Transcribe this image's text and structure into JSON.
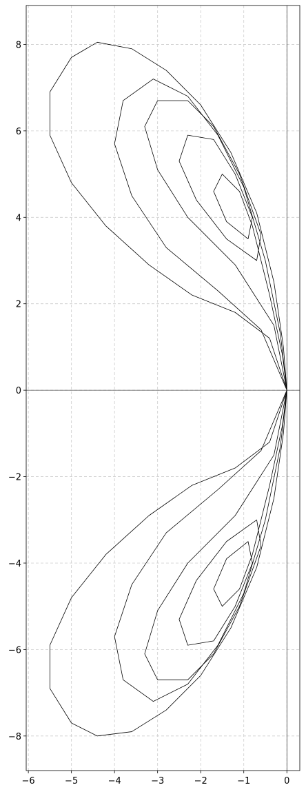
{
  "chart_data": {
    "type": "line",
    "xlim": [
      -6.05,
      0.3
    ],
    "ylim": [
      -8.8,
      8.9
    ],
    "xticks": [
      {
        "value": -6,
        "label": "−6"
      },
      {
        "value": -5,
        "label": "−5"
      },
      {
        "value": -4,
        "label": "−4"
      },
      {
        "value": -3,
        "label": "−3"
      },
      {
        "value": -2,
        "label": "−2"
      },
      {
        "value": -1,
        "label": "−1"
      },
      0
    ],
    "yticks": [
      {
        "value": -8,
        "label": "−8"
      },
      {
        "value": -6,
        "label": "−6"
      },
      {
        "value": -4,
        "label": "−4"
      },
      {
        "value": -2,
        "label": "−2"
      },
      0,
      2,
      4,
      6,
      8
    ],
    "grid": true,
    "hlines": [
      0
    ],
    "vlines": [
      0
    ],
    "series": [
      {
        "color": "#000000",
        "x": [
          0,
          -0.4,
          -1.2,
          -2.2,
          -3.2,
          -4.2,
          -5,
          -5.5,
          -5.5,
          -5,
          -4.4,
          -3.6,
          -2.8,
          -2,
          -1.3,
          -0.7,
          -0.3,
          -0.08,
          0,
          -0.6,
          -1.6,
          -2.8,
          -3.6,
          -4,
          -3.8,
          -3.1,
          -2.3,
          -1.6,
          -1,
          -0.5,
          -0.15,
          0
        ],
        "y": [
          0,
          1.2,
          1.8,
          2.2,
          2.9,
          3.8,
          4.8,
          5.9,
          6.9,
          7.7,
          8.05,
          7.9,
          7.4,
          6.6,
          5.5,
          4.1,
          2.5,
          1,
          0,
          1.4,
          2.3,
          3.3,
          4.5,
          5.7,
          6.7,
          7.2,
          6.8,
          5.9,
          4.7,
          3,
          1.3,
          0
        ]
      },
      {
        "color": "#000000",
        "x": [
          0,
          -0.3,
          -1.2,
          -2.3,
          -3,
          -3.3,
          -3,
          -2.3,
          -1.7,
          -1.1,
          -0.6,
          -0.7,
          -1.4,
          -2.1,
          -2.5,
          -2.3,
          -1.7,
          -1.2,
          -0.8,
          -0.9,
          -1.4,
          -1.7,
          -1.5,
          -1.1,
          -0.8,
          -0.4,
          -0.1,
          0
        ],
        "y": [
          0,
          1.5,
          2.9,
          4,
          5.1,
          6.1,
          6.7,
          6.7,
          6.1,
          5,
          3.6,
          3,
          3.5,
          4.4,
          5.3,
          5.9,
          5.8,
          5,
          4,
          3.5,
          3.9,
          4.6,
          5,
          4.6,
          3.8,
          2.2,
          0.8,
          0
        ]
      },
      {
        "color": "#000000",
        "x": [
          0,
          -0.4,
          -1.2,
          -2.2,
          -3.2,
          -4.2,
          -5,
          -5.5,
          -5.5,
          -5,
          -4.4,
          -3.6,
          -2.8,
          -2,
          -1.3,
          -0.7,
          -0.3,
          -0.08,
          0,
          -0.6,
          -1.6,
          -2.8,
          -3.6,
          -4,
          -3.8,
          -3.1,
          -2.3,
          -1.6,
          -1,
          -0.5,
          -0.15,
          0
        ],
        "y": [
          0,
          -1.2,
          -1.8,
          -2.2,
          -2.9,
          -3.8,
          -4.8,
          -5.9,
          -6.9,
          -7.7,
          -8,
          -7.9,
          -7.4,
          -6.6,
          -5.5,
          -4.1,
          -2.5,
          -1,
          0,
          -1.4,
          -2.3,
          -3.3,
          -4.5,
          -5.7,
          -6.7,
          -7.2,
          -6.8,
          -5.9,
          -4.7,
          -3,
          -1.3,
          0
        ]
      },
      {
        "color": "#000000",
        "x": [
          0,
          -0.3,
          -1.2,
          -2.3,
          -3,
          -3.3,
          -3,
          -2.3,
          -1.7,
          -1.1,
          -0.6,
          -0.7,
          -1.4,
          -2.1,
          -2.5,
          -2.3,
          -1.7,
          -1.2,
          -0.8,
          -0.9,
          -1.4,
          -1.7,
          -1.5,
          -1.1,
          -0.8,
          -0.4,
          -0.1,
          0
        ],
        "y": [
          0,
          -1.5,
          -2.9,
          -4,
          -5.1,
          -6.1,
          -6.7,
          -6.7,
          -6.1,
          -5,
          -3.6,
          -3,
          -3.5,
          -4.4,
          -5.3,
          -5.9,
          -5.8,
          -5,
          -4,
          -3.5,
          -3.9,
          -4.6,
          -5,
          -4.6,
          -3.8,
          -2.2,
          -0.8,
          0
        ]
      }
    ]
  }
}
